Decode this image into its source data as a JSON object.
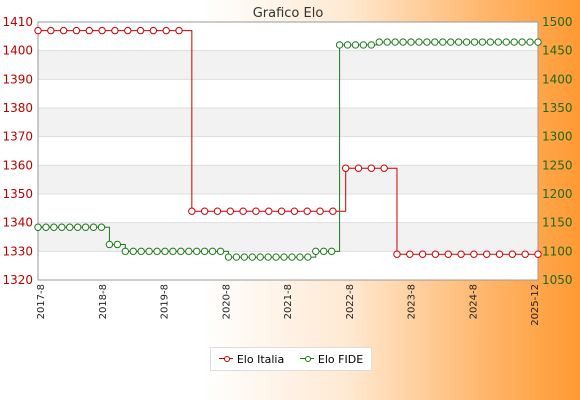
{
  "chart_data": {
    "type": "line",
    "title": "Grafico Elo",
    "left_axis": {
      "min": 1320,
      "max": 1410,
      "ticks": [
        1320,
        1330,
        1340,
        1350,
        1360,
        1370,
        1380,
        1390,
        1400,
        1410
      ],
      "color": "#cc0000"
    },
    "right_axis": {
      "min": 1050,
      "max": 1500,
      "ticks": [
        1050,
        1100,
        1150,
        1200,
        1250,
        1300,
        1350,
        1400,
        1450,
        1500
      ],
      "color": "#1a7a1a"
    },
    "grid": true,
    "x_labels": [
      "2017-8",
      "2018-8",
      "2019-8",
      "2020-8",
      "2021-8",
      "2022-8",
      "2023-8",
      "2024-8",
      "2025-12"
    ],
    "series": [
      {
        "name": "Elo Italia",
        "axis": "left",
        "color": "#cc0000",
        "values": [
          1407,
          1407,
          1407,
          1407,
          1407,
          1407,
          1407,
          1407,
          1407,
          1407,
          1407,
          1407,
          1344,
          1344,
          1344,
          1344,
          1344,
          1344,
          1344,
          1344,
          1344,
          1344,
          1344,
          1344,
          1359,
          1359,
          1359,
          1359,
          1329,
          1329,
          1329,
          1329,
          1329,
          1329,
          1329,
          1329,
          1329,
          1329,
          1329,
          1329
        ]
      },
      {
        "name": "Elo FIDE",
        "axis": "right",
        "color": "#1a7a1a",
        "values": [
          1142,
          1142,
          1142,
          1142,
          1142,
          1142,
          1142,
          1142,
          1142,
          1112,
          1112,
          1100,
          1100,
          1100,
          1100,
          1100,
          1100,
          1100,
          1100,
          1100,
          1100,
          1100,
          1100,
          1100,
          1090,
          1090,
          1090,
          1090,
          1090,
          1090,
          1090,
          1090,
          1090,
          1090,
          1090,
          1100,
          1100,
          1100,
          1460,
          1460,
          1460,
          1460,
          1460,
          1465,
          1465,
          1465,
          1465,
          1465,
          1465,
          1465,
          1465,
          1465,
          1465,
          1465,
          1465,
          1465,
          1465,
          1465,
          1465,
          1465,
          1465,
          1465,
          1465,
          1465
        ]
      }
    ],
    "legend": {
      "position": "bottom"
    }
  }
}
